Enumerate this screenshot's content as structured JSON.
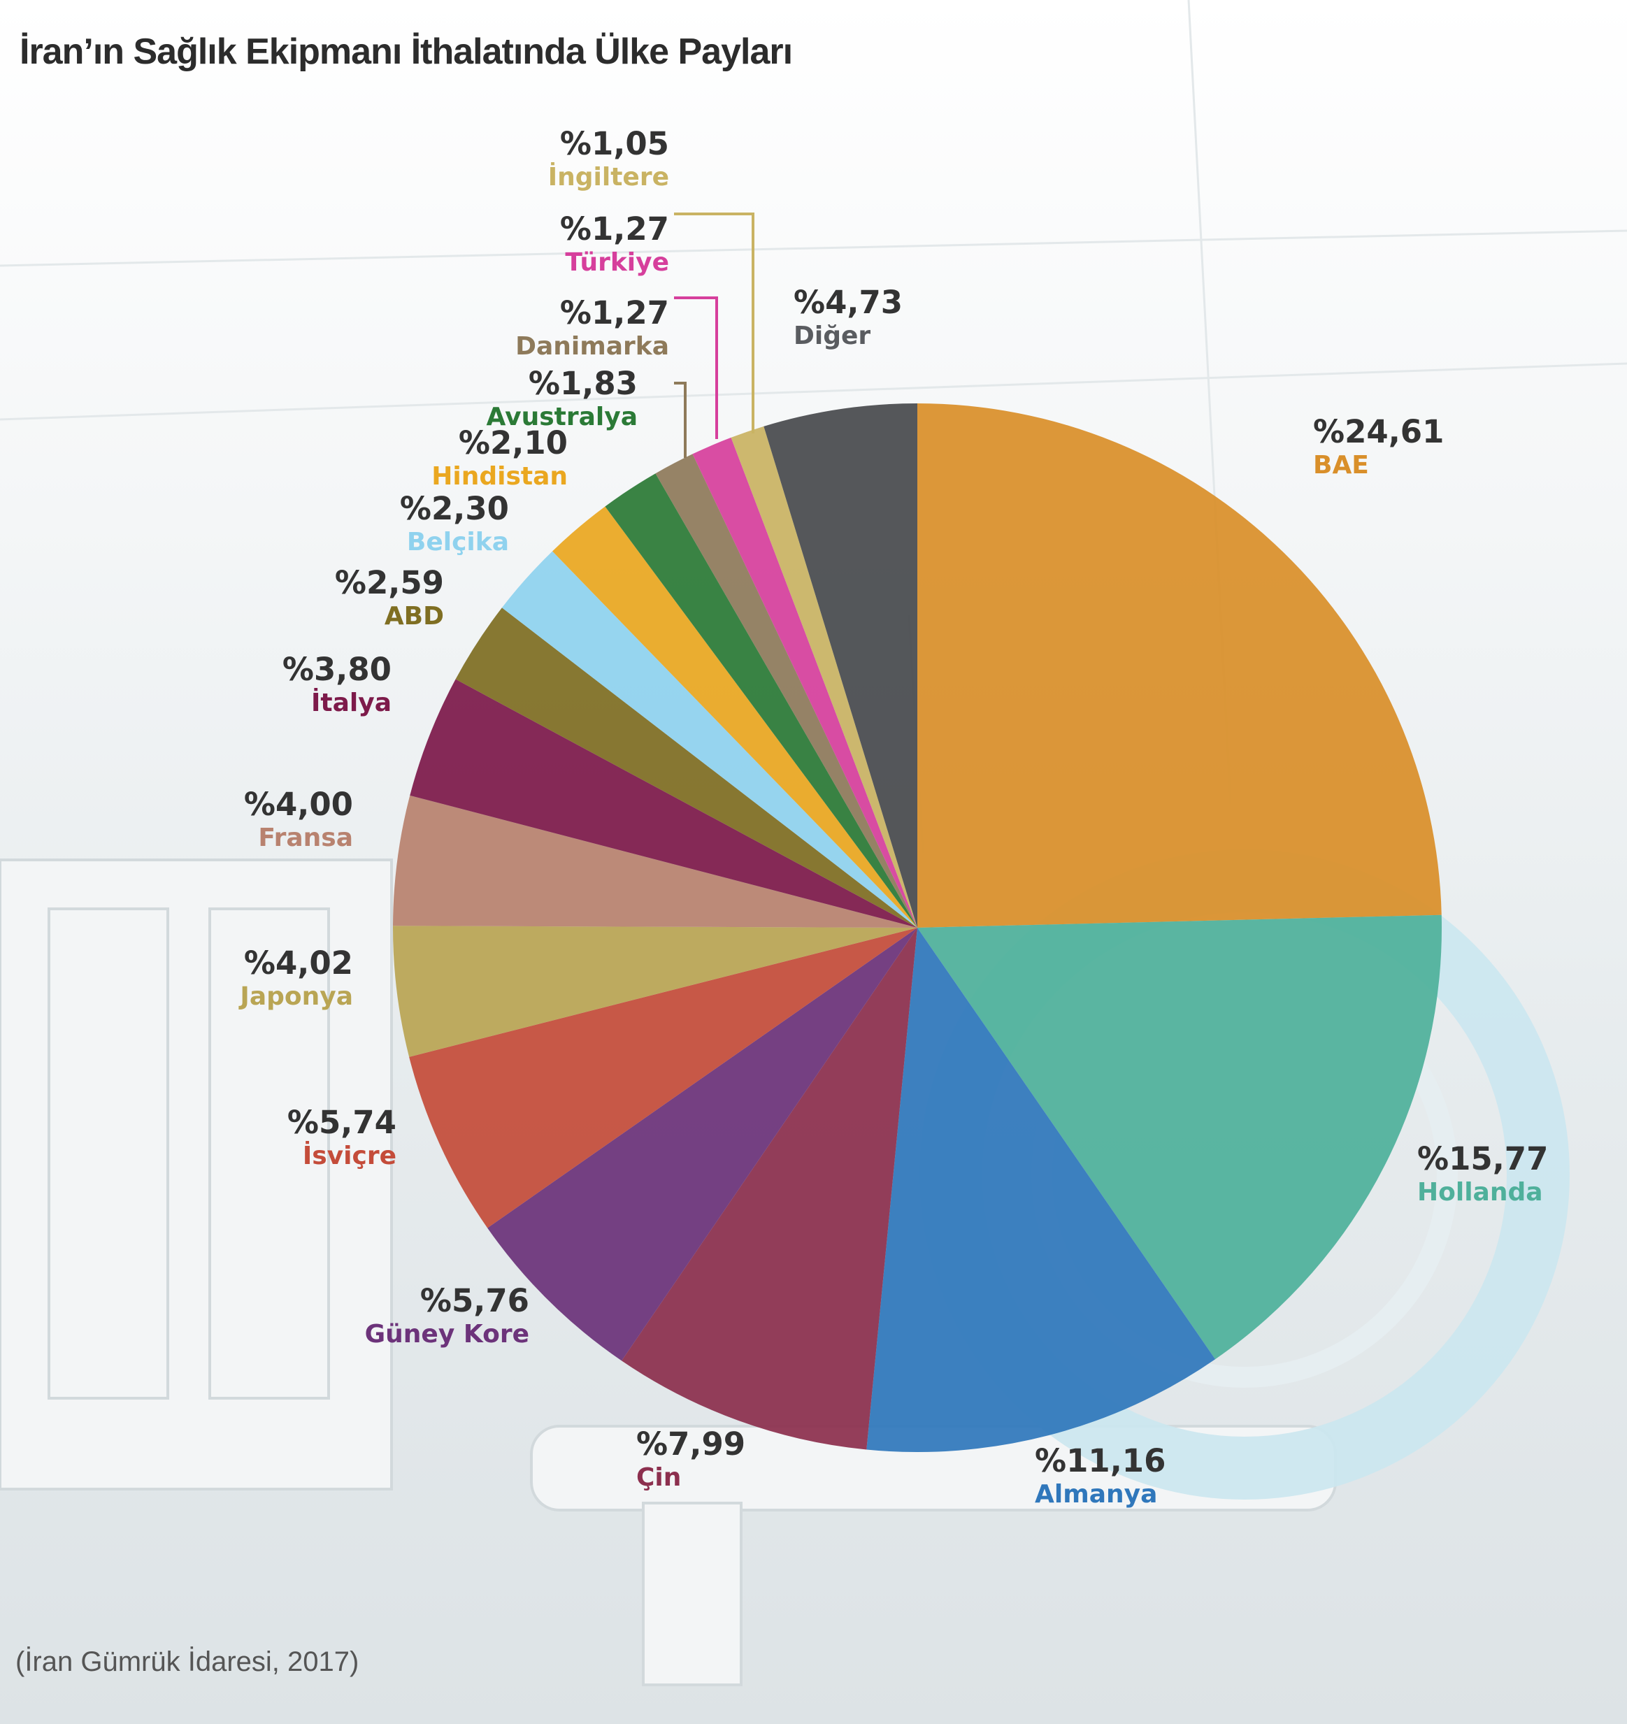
{
  "title": "İran’ın Sağlık Ekipmanı İthalatında Ülke Payları",
  "source": "(İran Gümrük İdaresi, 2017)",
  "chart_data": {
    "type": "pie",
    "title": "İran’ın Sağlık Ekipmanı İthalatında Ülke Payları",
    "start": "12 o'clock, clockwise",
    "slices": [
      {
        "name": "BAE",
        "value": 24.61,
        "label": "%24,61",
        "color": "#d98f2a"
      },
      {
        "name": "Hollanda",
        "value": 15.77,
        "label": "%15,77",
        "color": "#4fb09b"
      },
      {
        "name": "Almanya",
        "value": 11.16,
        "label": "%11,16",
        "color": "#2f77bb"
      },
      {
        "name": "Çin",
        "value": 7.99,
        "label": "%7,99",
        "color": "#8c2f4e"
      },
      {
        "name": "Güney Kore",
        "value": 5.76,
        "label": "%5,76",
        "color": "#6c337a"
      },
      {
        "name": "İsviçre",
        "value": 5.74,
        "label": "%5,74",
        "color": "#c44c3a"
      },
      {
        "name": "Japonya",
        "value": 4.02,
        "label": "%4,02",
        "color": "#b9a554"
      },
      {
        "name": "Fransa",
        "value": 4.0,
        "label": "%4,00",
        "color": "#b8826f"
      },
      {
        "name": "İtalya",
        "value": 3.8,
        "label": "%3,80",
        "color": "#7d1a4a"
      },
      {
        "name": "ABD",
        "value": 2.59,
        "label": "%2,59",
        "color": "#7f6e22"
      },
      {
        "name": "Belçika",
        "value": 2.3,
        "label": "%2,30",
        "color": "#8fd2ee"
      },
      {
        "name": "Hindistan",
        "value": 2.1,
        "label": "%2,10",
        "color": "#eaa720"
      },
      {
        "name": "Avustralya",
        "value": 1.83,
        "label": "%1,83",
        "color": "#2b7a36"
      },
      {
        "name": "Danimarka",
        "value": 1.27,
        "label": "%1,27",
        "color": "#8e7a5a"
      },
      {
        "name": "Türkiye",
        "value": 1.27,
        "label": "%1,27",
        "color": "#d63f9c"
      },
      {
        "name": "İngiltere",
        "value": 1.05,
        "label": "%1,05",
        "color": "#c9b363"
      },
      {
        "name": "Diğer",
        "value": 4.73,
        "label": "%4,73",
        "color": "#484a4d"
      }
    ]
  }
}
